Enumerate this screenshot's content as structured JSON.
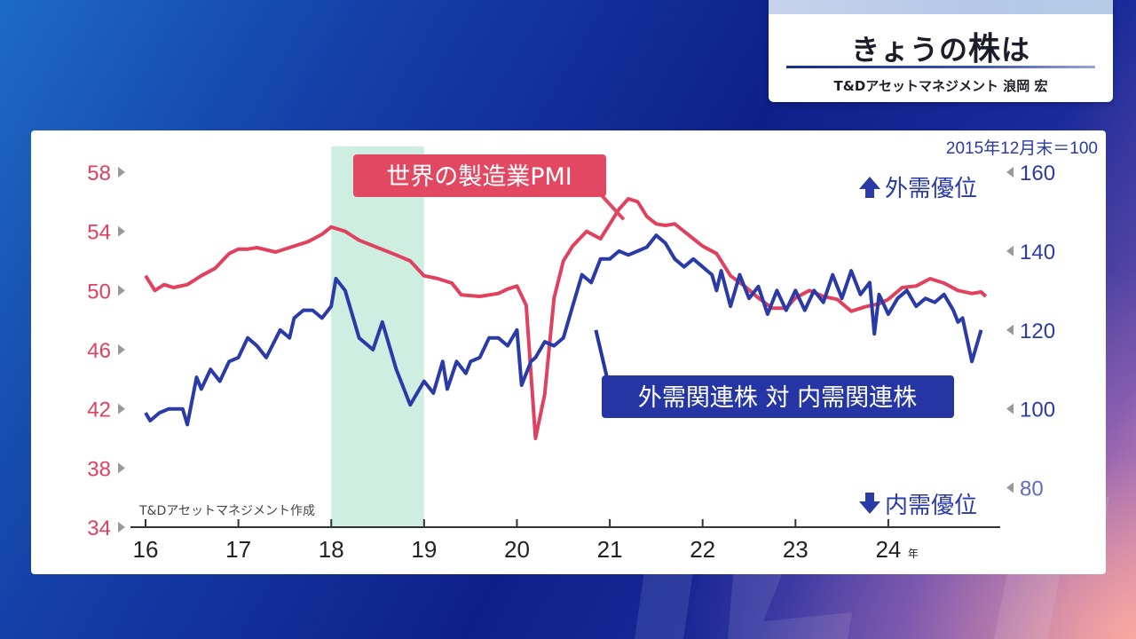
{
  "title": {
    "text_pre": "きょうの",
    "text_kanji": "株",
    "text_post": "は",
    "presenter": "T&Dアセットマネジメント 浪岡 宏"
  },
  "colors": {
    "pmi": "#e0415f",
    "ratio": "#2a3aa6",
    "shade": "#cfeee2",
    "callout_pmi": "#e34862",
    "callout_ratio": "#2536a4"
  },
  "chart_data": {
    "type": "line",
    "note": "2015年12月末＝100",
    "source": "T&Dアセットマネジメント作成",
    "x_unit": "年",
    "x_ticks": [
      "16",
      "17",
      "18",
      "19",
      "20",
      "21",
      "22",
      "23",
      "24"
    ],
    "x_range": [
      2016,
      2025.1
    ],
    "y_left": {
      "ticks": [
        "58",
        "54",
        "50",
        "46",
        "42",
        "38",
        "34"
      ],
      "range": [
        34,
        58
      ]
    },
    "y_right": {
      "ticks": [
        "160",
        "140",
        "120",
        "100",
        "80"
      ],
      "range": [
        70,
        160
      ]
    },
    "direction_up": "外需優位",
    "direction_down": "内需優位",
    "shaded_period": [
      2018.0,
      2019.0
    ],
    "series": [
      {
        "name": "世界の製造業PMI",
        "axis": "left",
        "x": [
          2016.0,
          2016.1,
          2016.2,
          2016.3,
          2016.45,
          2016.6,
          2016.75,
          2016.9,
          2017.0,
          2017.1,
          2017.2,
          2017.4,
          2017.55,
          2017.75,
          2017.9,
          2018.0,
          2018.15,
          2018.3,
          2018.5,
          2018.7,
          2018.85,
          2019.0,
          2019.15,
          2019.3,
          2019.4,
          2019.6,
          2019.8,
          2019.9,
          2020.0,
          2020.1,
          2020.2,
          2020.3,
          2020.4,
          2020.5,
          2020.6,
          2020.75,
          2020.9,
          2021.0,
          2021.1,
          2021.2,
          2021.3,
          2021.4,
          2021.5,
          2021.6,
          2021.7,
          2021.8,
          2021.9,
          2022.0,
          2022.15,
          2022.3,
          2022.45,
          2022.6,
          2022.75,
          2022.9,
          2023.0,
          2023.15,
          2023.3,
          2023.45,
          2023.6,
          2023.75,
          2023.9,
          2024.0,
          2024.15,
          2024.3,
          2024.45,
          2024.6,
          2024.75,
          2024.9,
          2025.0,
          2025.05
        ],
        "values": [
          51,
          50,
          50.4,
          50.2,
          50.4,
          51,
          51.5,
          52.5,
          52.8,
          52.8,
          52.9,
          52.6,
          52.9,
          53.3,
          53.8,
          54.3,
          54.0,
          53.4,
          52.9,
          52.4,
          52.0,
          51.0,
          50.8,
          50.5,
          49.7,
          49.6,
          49.8,
          50.1,
          50.3,
          49.0,
          40.0,
          43.0,
          49.5,
          52.0,
          53.0,
          54.0,
          53.5,
          54.5,
          55.5,
          56.2,
          56.0,
          55.0,
          54.5,
          54.4,
          54.5,
          54.0,
          53.5,
          53.0,
          52.5,
          51.0,
          50.3,
          49.5,
          48.8,
          48.8,
          49.5,
          50.0,
          49.6,
          49.4,
          48.6,
          48.9,
          49.1,
          49.4,
          50.2,
          50.3,
          50.8,
          50.5,
          50.0,
          49.8,
          49.9,
          49.6
        ]
      },
      {
        "name": "外需関連株 対 内需関連株",
        "axis": "right",
        "x": [
          2016.0,
          2016.05,
          2016.15,
          2016.25,
          2016.4,
          2016.45,
          2016.55,
          2016.6,
          2016.7,
          2016.8,
          2016.9,
          2017.0,
          2017.1,
          2017.2,
          2017.3,
          2017.45,
          2017.55,
          2017.6,
          2017.7,
          2017.8,
          2017.9,
          2018.0,
          2018.05,
          2018.15,
          2018.3,
          2018.45,
          2018.55,
          2018.7,
          2018.85,
          2019.0,
          2019.1,
          2019.2,
          2019.25,
          2019.35,
          2019.45,
          2019.5,
          2019.6,
          2019.7,
          2019.8,
          2019.9,
          2020.0,
          2020.05,
          2020.15,
          2020.2,
          2020.3,
          2020.4,
          2020.5,
          2020.6,
          2020.7,
          2020.8,
          2020.9,
          2021.0,
          2021.1,
          2021.2,
          2021.3,
          2021.4,
          2021.5,
          2021.6,
          2021.7,
          2021.8,
          2021.9,
          2022.0,
          2022.1,
          2022.15,
          2022.2,
          2022.3,
          2022.4,
          2022.5,
          2022.6,
          2022.7,
          2022.8,
          2022.9,
          2023.0,
          2023.1,
          2023.2,
          2023.3,
          2023.4,
          2023.5,
          2023.6,
          2023.7,
          2023.8,
          2023.85,
          2023.9,
          2024.0,
          2024.1,
          2024.2,
          2024.3,
          2024.4,
          2024.5,
          2024.6,
          2024.7,
          2024.75,
          2024.8,
          2024.9,
          2025.0
        ],
        "values": [
          99,
          97,
          99,
          100,
          100,
          96,
          108,
          105,
          110,
          107,
          112,
          113,
          118,
          116,
          113,
          120,
          118,
          123,
          125,
          125,
          123,
          126,
          133,
          130,
          118,
          115,
          122,
          110,
          101,
          107,
          104,
          112,
          105,
          112,
          109,
          112,
          113,
          118,
          118,
          116,
          120,
          106,
          112,
          113,
          117,
          116,
          118,
          126,
          134,
          132,
          138,
          138,
          140,
          139,
          140,
          141,
          144,
          142,
          138,
          136,
          138,
          136,
          134,
          130,
          135,
          126,
          134,
          128,
          131,
          124,
          130,
          125,
          130,
          125,
          130,
          127,
          134,
          128,
          135,
          129,
          132,
          119,
          129,
          124,
          128,
          130,
          126,
          128,
          127,
          129,
          125,
          122,
          123,
          112,
          120
        ]
      }
    ]
  }
}
